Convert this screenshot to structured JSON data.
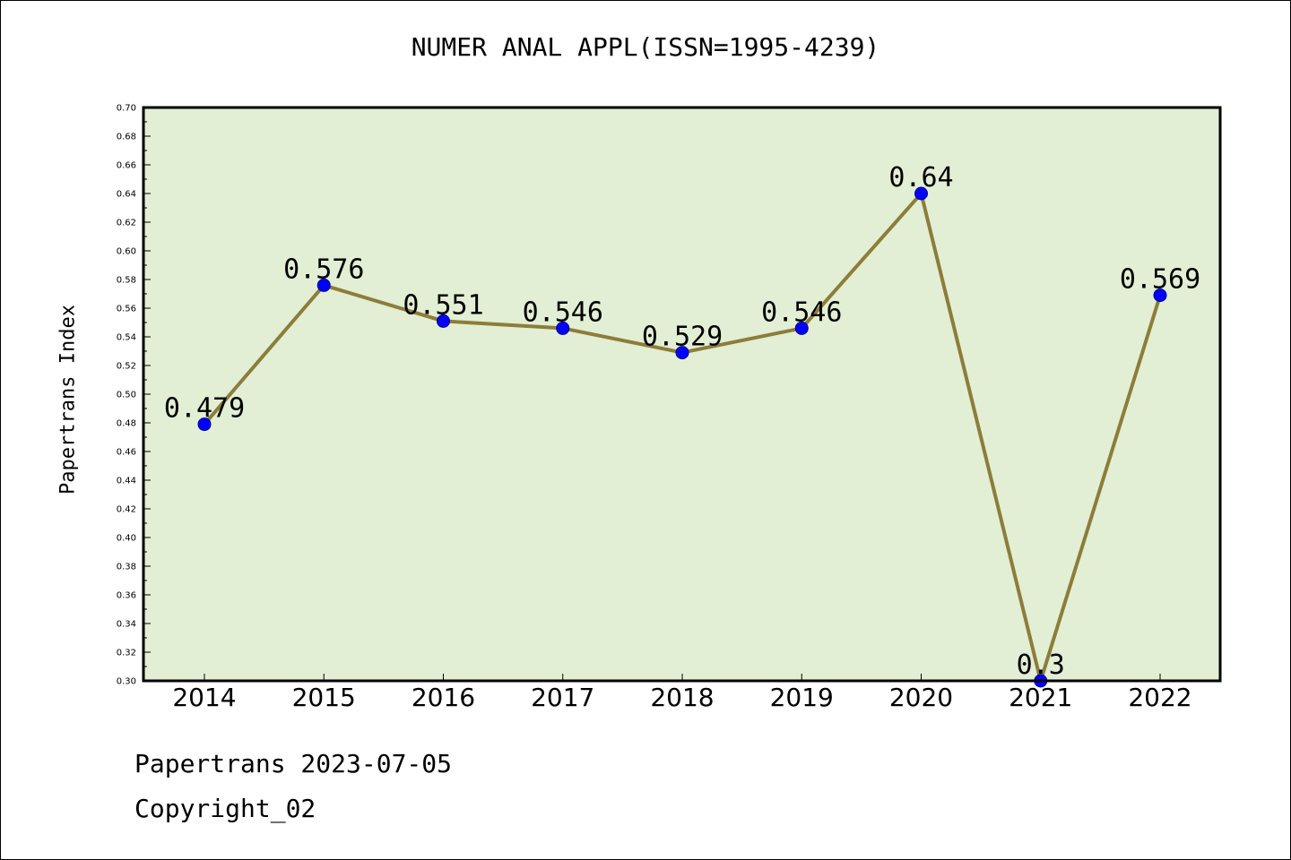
{
  "chart_data": {
    "type": "line",
    "title": "NUMER ANAL APPL(ISSN=1995-4239)",
    "ylabel": "Papertrans Index",
    "xlabel": "",
    "categories": [
      "2014",
      "2015",
      "2016",
      "2017",
      "2018",
      "2019",
      "2020",
      "2021",
      "2022"
    ],
    "values": [
      0.479,
      0.576,
      0.551,
      0.546,
      0.529,
      0.546,
      0.64,
      0.3,
      0.569
    ],
    "data_labels": [
      "0.479",
      "0.576",
      "0.551",
      "0.546",
      "0.529",
      "0.546",
      "0.64",
      "0.3",
      "0.569"
    ],
    "ylim": [
      0.3,
      0.7
    ],
    "ytick_step": 0.02,
    "grid": false,
    "legend": "none",
    "colors": {
      "plot_background": "#e2efd4",
      "line": "#8c7d3a",
      "marker": "#0000ff"
    }
  },
  "footer": {
    "line1": "Papertrans 2023-07-05",
    "line2": "Copyright_02"
  }
}
